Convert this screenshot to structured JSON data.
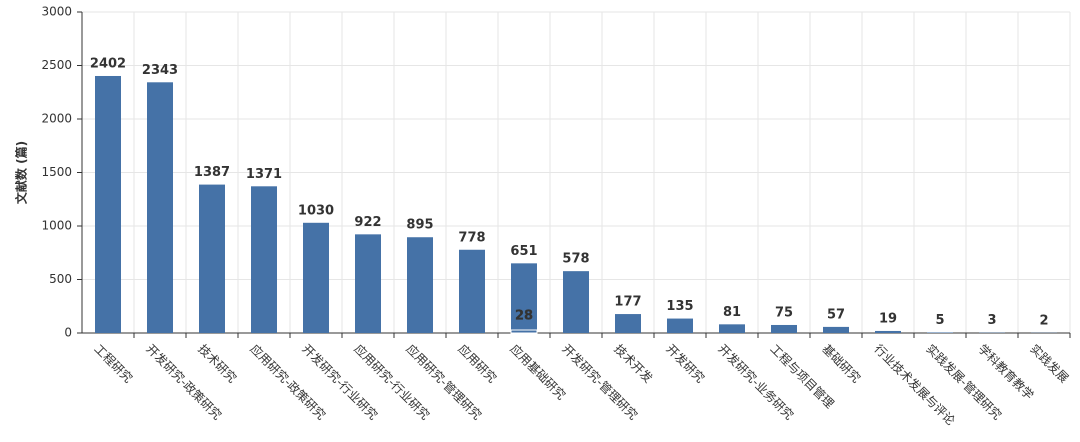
{
  "chart_data": {
    "type": "bar",
    "y_label": "文献数 (篇)",
    "categories": [
      "工程研究",
      "开发研究-政策研究",
      "技术研究",
      "应用研究-政策研究",
      "开发研究-行业研究",
      "应用研究-行业研究",
      "应用研究-管理研究",
      "应用研究",
      "应用基础研究",
      "开发研究-管理研究",
      "技术开发",
      "开发研究",
      "开发研究-业务研究",
      "工程与项目管理",
      "基础研究",
      "行业技术发展与评论",
      "实践发展-管理研究",
      "学科教育教学",
      "实践发展"
    ],
    "values": [
      2402,
      2343,
      1387,
      1371,
      1030,
      922,
      895,
      778,
      651,
      578,
      177,
      135,
      81,
      75,
      57,
      19,
      5,
      3,
      2
    ],
    "overlay": {
      "category": "应用基础研究",
      "value": 28
    },
    "color": "#4572a7",
    "ylim": [
      0,
      3000
    ],
    "yticks": [
      0,
      500,
      1000,
      1500,
      2000,
      2500,
      3000
    ],
    "grid": true
  }
}
